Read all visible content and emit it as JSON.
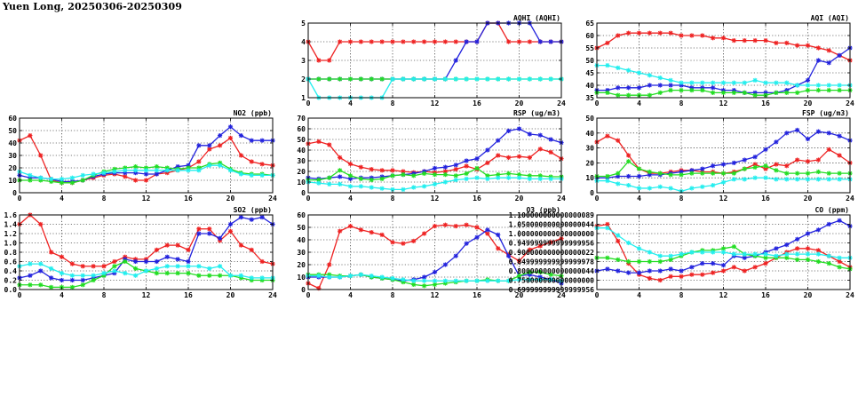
{
  "page": {
    "title": "Yuen Long, 20250306-20250309"
  },
  "colors": {
    "red": "#ee2222",
    "blue": "#2222dd",
    "green": "#22dd22",
    "cyan": "#22eeee"
  },
  "chart_data": [
    {
      "id": "aqhi",
      "type": "line",
      "title": "AQHI (AQHI)",
      "xlim": [
        0,
        24
      ],
      "xticks": [
        0,
        4,
        8,
        12,
        16,
        20,
        24
      ],
      "ylim": [
        1,
        5
      ],
      "yticks": [
        1,
        2,
        3,
        4,
        5
      ],
      "grid": true,
      "series": [
        {
          "color": "red",
          "values": [
            4,
            3,
            3,
            4,
            4,
            4,
            4,
            4,
            4,
            4,
            4,
            4,
            4,
            4,
            4,
            4,
            4,
            5,
            5,
            4,
            4,
            4,
            4,
            4,
            4
          ]
        },
        {
          "color": "blue",
          "values": [
            2,
            2,
            2,
            2,
            2,
            2,
            2,
            2,
            2,
            2,
            2,
            2,
            2,
            2,
            3,
            4,
            4,
            5,
            5,
            5,
            5,
            5,
            4,
            4,
            4
          ]
        },
        {
          "color": "green",
          "values": [
            2,
            2,
            2,
            2,
            2,
            2,
            2,
            2,
            2,
            2,
            2,
            2,
            2,
            2,
            2,
            2,
            2,
            2,
            2,
            2,
            2,
            2,
            2,
            2,
            2
          ]
        },
        {
          "color": "cyan",
          "values": [
            2,
            1,
            1,
            1,
            1,
            1,
            1,
            1,
            2,
            2,
            2,
            2,
            2,
            2,
            2,
            2,
            2,
            2,
            2,
            2,
            2,
            2,
            2,
            2,
            2
          ]
        }
      ]
    },
    {
      "id": "aqi",
      "type": "line",
      "title": "AQI (AQI)",
      "xlim": [
        0,
        24
      ],
      "xticks": [
        0,
        4,
        8,
        12,
        16,
        20,
        24
      ],
      "ylim": [
        35,
        65
      ],
      "yticks": [
        35,
        40,
        45,
        50,
        55,
        60,
        65
      ],
      "grid": true,
      "series": [
        {
          "color": "red",
          "values": [
            55,
            57,
            60,
            61,
            61,
            61,
            61,
            61,
            60,
            60,
            60,
            59,
            59,
            58,
            58,
            58,
            58,
            57,
            57,
            56,
            56,
            55,
            54,
            52,
            50
          ]
        },
        {
          "color": "blue",
          "values": [
            38,
            38,
            39,
            39,
            39,
            40,
            40,
            40,
            40,
            39,
            39,
            39,
            38,
            38,
            37,
            37,
            37,
            37,
            38,
            40,
            42,
            50,
            49,
            52,
            55
          ]
        },
        {
          "color": "green",
          "values": [
            37,
            37,
            36,
            36,
            36,
            36,
            37,
            38,
            38,
            38,
            38,
            37,
            37,
            37,
            37,
            36,
            36,
            37,
            37,
            37,
            38,
            38,
            38,
            38,
            38
          ]
        },
        {
          "color": "cyan",
          "values": [
            48,
            48,
            47,
            46,
            45,
            44,
            43,
            42,
            41,
            41,
            41,
            41,
            41,
            41,
            41,
            42,
            41,
            41,
            41,
            40,
            40,
            40,
            40,
            40,
            40
          ]
        }
      ]
    },
    {
      "id": "no2",
      "type": "line",
      "title": "NO2 (ppb)",
      "xlim": [
        0,
        24
      ],
      "xticks": [
        0,
        4,
        8,
        12,
        16,
        20,
        24
      ],
      "ylim": [
        0,
        60
      ],
      "yticks": [
        0,
        10,
        20,
        30,
        40,
        50,
        60
      ],
      "grid": true,
      "series": [
        {
          "color": "red",
          "values": [
            42,
            46,
            30,
            10,
            8,
            8,
            10,
            12,
            14,
            15,
            13,
            10,
            10,
            15,
            16,
            18,
            20,
            25,
            35,
            38,
            44,
            30,
            25,
            23,
            22
          ]
        },
        {
          "color": "blue",
          "values": [
            14,
            12,
            12,
            11,
            9,
            9,
            10,
            13,
            15,
            16,
            16,
            16,
            15,
            15,
            18,
            21,
            22,
            38,
            38,
            46,
            53,
            46,
            42,
            42,
            42
          ]
        },
        {
          "color": "green",
          "values": [
            10,
            10,
            10,
            9,
            8,
            8,
            10,
            14,
            17,
            19,
            20,
            21,
            20,
            21,
            20,
            19,
            20,
            20,
            23,
            24,
            19,
            16,
            15,
            15,
            14
          ]
        },
        {
          "color": "cyan",
          "values": [
            17,
            14,
            12,
            11,
            11,
            12,
            14,
            15,
            16,
            17,
            18,
            18,
            18,
            18,
            18,
            18,
            18,
            18,
            22,
            22,
            18,
            15,
            14,
            14,
            14
          ]
        }
      ]
    },
    {
      "id": "rsp",
      "type": "line",
      "title": "RSP (ug/m3)",
      "xlim": [
        0,
        24
      ],
      "xticks": [
        0,
        4,
        8,
        12,
        16,
        20,
        24
      ],
      "ylim": [
        0,
        70
      ],
      "yticks": [
        0,
        10,
        20,
        30,
        40,
        50,
        60,
        70
      ],
      "grid": true,
      "series": [
        {
          "color": "red",
          "values": [
            46,
            48,
            45,
            33,
            27,
            24,
            22,
            21,
            21,
            20,
            19,
            20,
            19,
            20,
            22,
            25,
            22,
            28,
            35,
            33,
            34,
            33,
            41,
            38,
            32
          ]
        },
        {
          "color": "blue",
          "values": [
            14,
            13,
            14,
            15,
            13,
            14,
            14,
            15,
            16,
            17,
            18,
            20,
            23,
            24,
            26,
            30,
            32,
            40,
            49,
            58,
            60,
            55,
            54,
            50,
            47
          ]
        },
        {
          "color": "green",
          "values": [
            12,
            12,
            14,
            21,
            16,
            13,
            12,
            13,
            16,
            17,
            16,
            18,
            17,
            17,
            16,
            18,
            23,
            16,
            17,
            18,
            17,
            16,
            16,
            15,
            15
          ]
        },
        {
          "color": "cyan",
          "values": [
            10,
            9,
            8,
            8,
            6,
            6,
            5,
            4,
            3,
            3,
            5,
            6,
            8,
            10,
            12,
            13,
            14,
            13,
            14,
            14,
            14,
            13,
            13,
            13,
            13
          ]
        }
      ]
    },
    {
      "id": "fsp",
      "type": "line",
      "title": "FSP (ug/m3)",
      "xlim": [
        0,
        24
      ],
      "xticks": [
        0,
        4,
        8,
        12,
        16,
        20,
        24
      ],
      "ylim": [
        0,
        50
      ],
      "yticks": [
        0,
        10,
        20,
        30,
        40,
        50
      ],
      "grid": true,
      "series": [
        {
          "color": "red",
          "values": [
            34,
            38,
            35,
            25,
            16,
            13,
            13,
            14,
            15,
            15,
            14,
            14,
            13,
            14,
            16,
            19,
            16,
            19,
            18,
            22,
            21,
            22,
            29,
            25,
            20
          ]
        },
        {
          "color": "blue",
          "values": [
            10,
            10,
            11,
            11,
            11,
            12,
            12,
            13,
            14,
            15,
            16,
            18,
            19,
            20,
            22,
            24,
            29,
            34,
            40,
            42,
            36,
            41,
            40,
            38,
            35
          ]
        },
        {
          "color": "green",
          "values": [
            11,
            11,
            13,
            21,
            16,
            14,
            13,
            12,
            12,
            13,
            13,
            13,
            13,
            13,
            16,
            17,
            18,
            15,
            13,
            13,
            13,
            14,
            13,
            13,
            13
          ]
        },
        {
          "color": "cyan",
          "values": [
            8,
            8,
            6,
            5,
            3,
            3,
            4,
            3,
            1,
            3,
            4,
            5,
            7,
            9,
            9,
            10,
            10,
            9,
            9,
            9,
            9,
            9,
            9,
            9,
            9
          ]
        }
      ]
    },
    {
      "id": "so2",
      "type": "line",
      "title": "SO2 (ppb)",
      "xlim": [
        0,
        24
      ],
      "xticks": [
        0,
        4,
        8,
        12,
        16,
        20,
        24
      ],
      "ylim": [
        0,
        1.6
      ],
      "yticks": [
        0,
        0.2,
        0.4,
        0.6,
        0.8,
        1.0,
        1.2,
        1.4,
        1.6
      ],
      "grid": true,
      "series": [
        {
          "color": "red",
          "values": [
            1.4,
            1.6,
            1.4,
            0.8,
            0.7,
            0.55,
            0.5,
            0.5,
            0.5,
            0.6,
            0.7,
            0.65,
            0.65,
            0.85,
            0.95,
            0.95,
            0.85,
            1.3,
            1.3,
            1.05,
            1.25,
            0.95,
            0.85,
            0.6,
            0.55
          ]
        },
        {
          "color": "blue",
          "values": [
            0.25,
            0.3,
            0.4,
            0.25,
            0.2,
            0.2,
            0.2,
            0.25,
            0.3,
            0.35,
            0.65,
            0.6,
            0.6,
            0.6,
            0.7,
            0.65,
            0.6,
            1.2,
            1.2,
            1.1,
            1.4,
            1.55,
            1.5,
            1.55,
            1.4
          ]
        },
        {
          "color": "green",
          "values": [
            0.1,
            0.1,
            0.1,
            0.05,
            0.05,
            0.05,
            0.1,
            0.2,
            0.3,
            0.5,
            0.6,
            0.45,
            0.4,
            0.35,
            0.35,
            0.35,
            0.35,
            0.3,
            0.3,
            0.3,
            0.3,
            0.25,
            0.2,
            0.2,
            0.2
          ]
        },
        {
          "color": "cyan",
          "values": [
            0.5,
            0.55,
            0.55,
            0.45,
            0.35,
            0.3,
            0.3,
            0.3,
            0.35,
            0.4,
            0.35,
            0.3,
            0.4,
            0.45,
            0.5,
            0.5,
            0.5,
            0.5,
            0.45,
            0.5,
            0.3,
            0.3,
            0.25,
            0.25,
            0.25
          ]
        }
      ]
    },
    {
      "id": "o3",
      "type": "line",
      "title": "O3 (ppb)",
      "xlim": [
        0,
        24
      ],
      "xticks": [
        0,
        4,
        8,
        12,
        16,
        20,
        24
      ],
      "ylim": [
        0,
        60
      ],
      "yticks": [
        0,
        10,
        20,
        30,
        40,
        50,
        60
      ],
      "grid": true,
      "series": [
        {
          "color": "red",
          "values": [
            5,
            1,
            20,
            47,
            51,
            48,
            46,
            44,
            38,
            37,
            39,
            45,
            51,
            52,
            51,
            52,
            50,
            45,
            33,
            28,
            23,
            32,
            35,
            38,
            41
          ]
        },
        {
          "color": "blue",
          "values": [
            10,
            10,
            10,
            10,
            11,
            12,
            10,
            9,
            8,
            7,
            8,
            10,
            14,
            20,
            27,
            37,
            42,
            48,
            44,
            27,
            11,
            12,
            10,
            8,
            5
          ]
        },
        {
          "color": "green",
          "values": [
            12,
            12,
            12,
            11,
            11,
            12,
            10,
            9,
            8,
            6,
            4,
            3,
            4,
            5,
            6,
            7,
            7,
            8,
            7,
            7,
            11,
            14,
            14,
            12,
            11
          ]
        },
        {
          "color": "cyan",
          "values": [
            11,
            11,
            10,
            10,
            11,
            12,
            11,
            10,
            9,
            8,
            7,
            7,
            7,
            7,
            7,
            7,
            7,
            7,
            7,
            7,
            8,
            8,
            8,
            8,
            7
          ]
        }
      ]
    },
    {
      "id": "co",
      "type": "line",
      "title": "CO (ppm)",
      "xlim": [
        0,
        24
      ],
      "xticks": [
        0,
        4,
        8,
        12,
        16,
        20,
        24
      ],
      "ylim": [
        0.7,
        1.1
      ],
      "yticks": [
        0.7,
        0.75,
        0.8,
        0.85,
        0.9,
        0.95,
        1.0,
        1.05,
        1.1
      ],
      "grid": true,
      "series": [
        {
          "color": "red",
          "values": [
            1.04,
            1.05,
            0.96,
            0.84,
            0.78,
            0.76,
            0.75,
            0.77,
            0.77,
            0.78,
            0.78,
            0.79,
            0.8,
            0.82,
            0.8,
            0.82,
            0.84,
            0.87,
            0.9,
            0.92,
            0.92,
            0.91,
            0.88,
            0.85,
            0.82
          ]
        },
        {
          "color": "blue",
          "values": [
            0.8,
            0.81,
            0.8,
            0.79,
            0.79,
            0.8,
            0.8,
            0.81,
            0.8,
            0.82,
            0.84,
            0.84,
            0.83,
            0.88,
            0.87,
            0.88,
            0.9,
            0.92,
            0.94,
            0.97,
            1.0,
            1.02,
            1.05,
            1.07,
            1.04
          ]
        },
        {
          "color": "green",
          "values": [
            0.87,
            0.87,
            0.86,
            0.85,
            0.85,
            0.85,
            0.85,
            0.86,
            0.88,
            0.9,
            0.91,
            0.91,
            0.92,
            0.93,
            0.89,
            0.88,
            0.87,
            0.87,
            0.87,
            0.86,
            0.86,
            0.85,
            0.84,
            0.82,
            0.81
          ]
        },
        {
          "color": "cyan",
          "values": [
            1.03,
            1.03,
            0.99,
            0.95,
            0.92,
            0.9,
            0.88,
            0.88,
            0.89,
            0.9,
            0.9,
            0.9,
            0.9,
            0.89,
            0.89,
            0.89,
            0.89,
            0.88,
            0.89,
            0.89,
            0.89,
            0.89,
            0.88,
            0.87,
            0.87
          ]
        }
      ]
    }
  ]
}
